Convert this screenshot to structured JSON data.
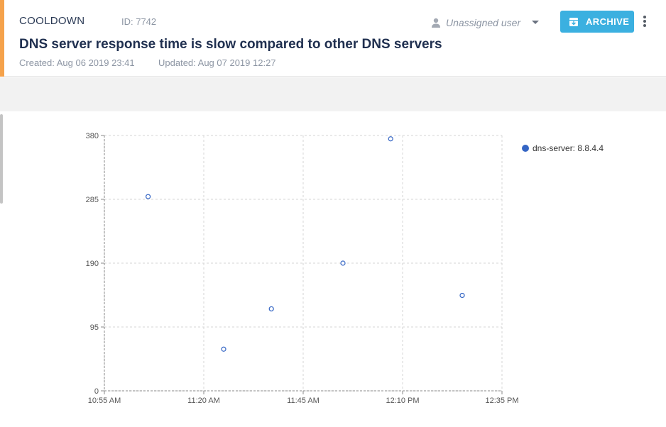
{
  "header": {
    "status": "COOLDOWN",
    "alert_id": "ID: 7742",
    "title": "DNS server response time is slow compared to other DNS servers",
    "created": "Created: Aug 06 2019 23:41",
    "updated": "Updated: Aug 07 2019 12:27",
    "accent_color": "#f5a24b",
    "assignee": {
      "label": "Unassigned user",
      "icon": "user-icon"
    },
    "archive_button": {
      "label": "ARCHIVE",
      "icon": "archive-box-icon",
      "color": "#3bb0e0"
    },
    "more_button": {
      "icon": "kebab-menu-icon"
    }
  },
  "chart_data": {
    "type": "scatter",
    "x_ticks": [
      "10:55 AM",
      "11:20 AM",
      "11:45 AM",
      "12:10 PM",
      "12:35 PM"
    ],
    "x_range": [
      "10:55",
      "12:35"
    ],
    "y_ticks": [
      0,
      95,
      190,
      285,
      380
    ],
    "ylim": [
      0,
      380
    ],
    "grid": true,
    "legend_position": "top-right",
    "series": [
      {
        "name": "dns-server: 8.8.4.4",
        "color": "#3465c4",
        "points": [
          {
            "x": "11:06",
            "y": 289
          },
          {
            "x": "11:25",
            "y": 62
          },
          {
            "x": "11:37",
            "y": 122
          },
          {
            "x": "11:55",
            "y": 190
          },
          {
            "x": "12:07",
            "y": 375
          },
          {
            "x": "12:25",
            "y": 142
          }
        ]
      }
    ]
  }
}
